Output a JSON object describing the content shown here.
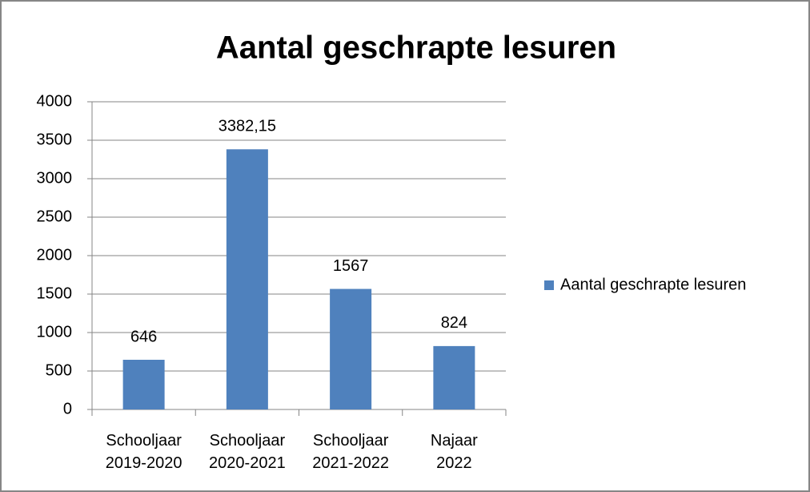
{
  "chart_data": {
    "type": "bar",
    "title": "Aantal geschrapte lesuren",
    "categories": [
      "Schooljaar 2019-2020",
      "Schooljaar 2020-2021",
      "Schooljaar 2021-2022",
      "Najaar 2022"
    ],
    "series": [
      {
        "name": "Aantal geschrapte lesuren",
        "color": "#4f81bd",
        "values": [
          646,
          3382.15,
          1567,
          824
        ],
        "value_labels": [
          "646",
          "3382,15",
          "1567",
          "824"
        ]
      }
    ],
    "ylim": [
      0,
      4000
    ],
    "yticks": [
      0,
      500,
      1000,
      1500,
      2000,
      2500,
      3000,
      3500,
      4000
    ],
    "grid": true,
    "legend": "right"
  }
}
